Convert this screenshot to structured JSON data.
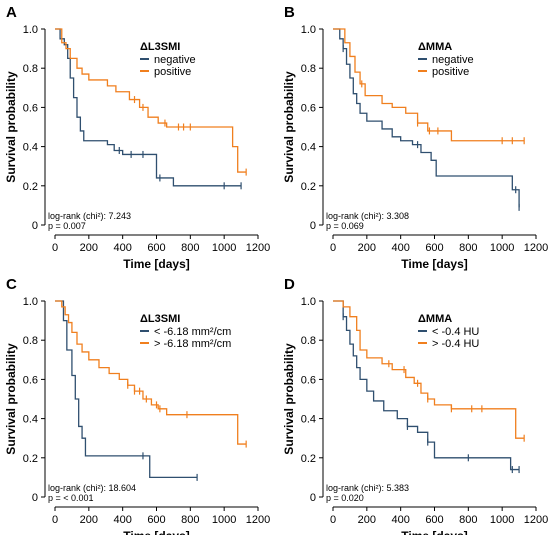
{
  "chart_data": [
    {
      "type": "line",
      "panel_label": "A",
      "xlabel": "Time [days]",
      "ylabel": "Survival probability",
      "xlim": [
        0,
        1200
      ],
      "ylim": [
        0,
        1
      ],
      "x_ticks": [
        "0",
        "200",
        "400",
        "600",
        "800",
        "1000",
        "1200"
      ],
      "y_ticks": [
        "0",
        "0.2",
        "0.4",
        "0.6",
        "0.8",
        "1.0"
      ],
      "legend_title": "ΔL3SMI",
      "legend_position": "top-right",
      "stats_line1": "log-rank (chi²): 7.243",
      "stats_line2": "p = 0.007",
      "series": [
        {
          "name": "negative",
          "color": "#2f4f6f",
          "x": [
            0,
            30,
            55,
            75,
            90,
            110,
            130,
            150,
            170,
            200,
            310,
            350,
            400,
            600,
            700,
            1100
          ],
          "y": [
            1.0,
            0.95,
            0.92,
            0.85,
            0.75,
            0.65,
            0.55,
            0.48,
            0.43,
            0.43,
            0.41,
            0.38,
            0.36,
            0.24,
            0.2,
            0.2
          ],
          "censor_x": [
            380,
            450,
            520,
            620,
            1000,
            1100
          ]
        },
        {
          "name": "positive",
          "color": "#f07f1e",
          "x": [
            0,
            40,
            65,
            90,
            130,
            160,
            200,
            310,
            360,
            440,
            500,
            550,
            610,
            660,
            1050,
            1080,
            1130
          ],
          "y": [
            1.0,
            0.93,
            0.9,
            0.85,
            0.8,
            0.77,
            0.74,
            0.71,
            0.68,
            0.64,
            0.6,
            0.55,
            0.52,
            0.5,
            0.4,
            0.27,
            0.27
          ],
          "censor_x": [
            470,
            520,
            650,
            730,
            760,
            800,
            1130
          ]
        }
      ]
    },
    {
      "type": "line",
      "panel_label": "B",
      "xlabel": "Time [days]",
      "ylabel": "Survival probability",
      "xlim": [
        0,
        1200
      ],
      "ylim": [
        0,
        1
      ],
      "x_ticks": [
        "0",
        "200",
        "400",
        "600",
        "800",
        "1000",
        "1200"
      ],
      "y_ticks": [
        "0",
        "0.2",
        "0.4",
        "0.6",
        "0.8",
        "1.0"
      ],
      "legend_title": "ΔMMA",
      "legend_position": "top-right",
      "stats_line1": "log-rank (chi²): 3.308",
      "stats_line2": "p = 0.069",
      "series": [
        {
          "name": "negative",
          "color": "#2f4f6f",
          "x": [
            0,
            40,
            60,
            80,
            100,
            120,
            140,
            160,
            200,
            290,
            350,
            400,
            470,
            520,
            580,
            610,
            1000,
            1060,
            1100
          ],
          "y": [
            1.0,
            0.95,
            0.9,
            0.82,
            0.75,
            0.67,
            0.62,
            0.57,
            0.53,
            0.49,
            0.45,
            0.43,
            0.41,
            0.37,
            0.33,
            0.25,
            0.25,
            0.18,
            0.09
          ],
          "censor_x": [
            60,
            500,
            1080,
            1100
          ]
        },
        {
          "name": "positive",
          "color": "#f07f1e",
          "x": [
            0,
            70,
            100,
            130,
            160,
            190,
            290,
            350,
            430,
            500,
            560,
            700,
            1130
          ],
          "y": [
            1.0,
            0.93,
            0.86,
            0.78,
            0.72,
            0.66,
            0.62,
            0.6,
            0.57,
            0.52,
            0.48,
            0.43,
            0.43
          ],
          "censor_x": [
            170,
            500,
            570,
            620,
            1000,
            1060,
            1130
          ]
        }
      ]
    },
    {
      "type": "line",
      "panel_label": "C",
      "xlabel": "Time [days]",
      "ylabel": "Survival probability",
      "xlim": [
        0,
        1200
      ],
      "ylim": [
        0,
        1
      ],
      "x_ticks": [
        "0",
        "200",
        "400",
        "600",
        "800",
        "1000",
        "1200"
      ],
      "y_ticks": [
        "0",
        "0.2",
        "0.4",
        "0.6",
        "0.8",
        "1.0"
      ],
      "legend_title": "ΔL3SMI",
      "legend_position": "top-right",
      "stats_line1": "log-rank (chi²): 18.604",
      "stats_line2": "p = < 0.001",
      "series": [
        {
          "name": "< -6.18 mm²/cm",
          "color": "#2f4f6f",
          "x": [
            0,
            50,
            70,
            100,
            120,
            140,
            160,
            180,
            560,
            840
          ],
          "y": [
            1.0,
            0.9,
            0.75,
            0.62,
            0.5,
            0.36,
            0.3,
            0.21,
            0.1,
            0.1
          ],
          "censor_x": [
            520,
            840
          ]
        },
        {
          "name": "> -6.18 mm²/cm",
          "color": "#f07f1e",
          "x": [
            0,
            40,
            60,
            80,
            100,
            130,
            160,
            200,
            260,
            320,
            380,
            430,
            470,
            520,
            570,
            610,
            660,
            1050,
            1080,
            1130
          ],
          "y": [
            1.0,
            0.97,
            0.93,
            0.89,
            0.84,
            0.78,
            0.74,
            0.7,
            0.66,
            0.63,
            0.6,
            0.57,
            0.54,
            0.5,
            0.47,
            0.45,
            0.42,
            0.42,
            0.27,
            0.27
          ],
          "censor_x": [
            430,
            470,
            500,
            540,
            600,
            620,
            780,
            1130
          ]
        }
      ]
    },
    {
      "type": "line",
      "panel_label": "D",
      "xlabel": "Time [days]",
      "ylabel": "Survival probability",
      "xlim": [
        0,
        1200
      ],
      "ylim": [
        0,
        1
      ],
      "x_ticks": [
        "0",
        "200",
        "400",
        "600",
        "800",
        "1000",
        "1200"
      ],
      "y_ticks": [
        "0",
        "0.2",
        "0.4",
        "0.6",
        "0.8",
        "1.0"
      ],
      "legend_title": "ΔMMA",
      "legend_position": "top-right",
      "stats_line1": "log-rank (chi²): 5.383",
      "stats_line2": "p = 0.020",
      "series": [
        {
          "name": "< -0.4 HU",
          "color": "#2f4f6f",
          "x": [
            0,
            60,
            80,
            100,
            120,
            140,
            160,
            200,
            240,
            300,
            380,
            440,
            500,
            560,
            600,
            1000,
            1050,
            1100
          ],
          "y": [
            1.0,
            0.92,
            0.85,
            0.78,
            0.72,
            0.66,
            0.6,
            0.54,
            0.49,
            0.44,
            0.4,
            0.36,
            0.33,
            0.28,
            0.2,
            0.2,
            0.14,
            0.14
          ],
          "censor_x": [
            60,
            440,
            560,
            800,
            1060,
            1100
          ]
        },
        {
          "name": "> -0.4 HU",
          "color": "#f07f1e",
          "x": [
            0,
            60,
            100,
            140,
            160,
            200,
            290,
            350,
            430,
            480,
            520,
            560,
            600,
            700,
            1080,
            1130
          ],
          "y": [
            1.0,
            0.97,
            0.92,
            0.85,
            0.75,
            0.71,
            0.68,
            0.65,
            0.61,
            0.58,
            0.53,
            0.5,
            0.47,
            0.45,
            0.3,
            0.3
          ],
          "censor_x": [
            330,
            420,
            500,
            560,
            700,
            820,
            880,
            1130
          ]
        }
      ]
    }
  ]
}
